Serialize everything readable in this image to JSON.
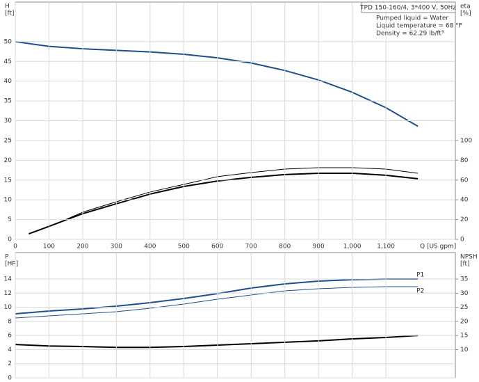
{
  "chart_data": [
    {
      "type": "line",
      "legend_box": [
        "TPD 150-160/4, 3*400 V, 50Hz",
        "Pumped liquid = Water",
        "Liquid temperature = 68 °F",
        "Density = 62.29 lb/ft³"
      ],
      "ylabel": [
        "H",
        "[ft]"
      ],
      "y2label": [
        "eta",
        "[%]"
      ],
      "xlabel": "Q [US gpm]",
      "xlim": [
        0,
        1300
      ],
      "xticks": [
        0,
        100,
        200,
        300,
        400,
        500,
        600,
        700,
        800,
        900,
        {
          "value": 1000,
          "label": "1,000"
        },
        {
          "value": 1100,
          "label": "1,100"
        }
      ],
      "ylim": [
        0,
        60
      ],
      "yticks": [
        0,
        5,
        10,
        15,
        20,
        25,
        30,
        35,
        40,
        45,
        50
      ],
      "y2lim": [
        0,
        240
      ],
      "y2ticks": [
        0,
        20,
        40,
        60,
        80,
        100
      ],
      "grid": true,
      "series": [
        {
          "color": "#1f4e8c",
          "width": 2,
          "x": [
            0,
            100,
            200,
            300,
            400,
            500,
            600,
            700,
            800,
            900,
            1000,
            1100,
            1195
          ],
          "values": [
            50,
            48.8,
            48.2,
            47.8,
            47.4,
            46.8,
            45.9,
            44.6,
            42.7,
            40.3,
            37.2,
            33.3,
            28.6
          ]
        },
        {
          "color": "#000000",
          "width": 1,
          "axis": "y2",
          "x": [
            40,
            100,
            200,
            300,
            400,
            500,
            600,
            700,
            800,
            900,
            1000,
            1100,
            1195
          ],
          "values": [
            5.6,
            12.7,
            27.5,
            38,
            47.9,
            55.6,
            63.4,
            67.6,
            71.1,
            72.5,
            72.5,
            71.1,
            66.9
          ]
        },
        {
          "color": "#000000",
          "width": 2,
          "axis": "y2",
          "x": [
            40,
            80,
            200,
            300,
            400,
            500,
            600,
            700,
            800,
            900,
            1000,
            1100,
            1195
          ],
          "values": [
            5.6,
            10.6,
            26,
            36,
            45.8,
            53.5,
            59,
            62.7,
            65.5,
            66.9,
            66.9,
            64.8,
            61.3
          ]
        }
      ]
    },
    {
      "type": "line",
      "ylabel": [
        "P",
        "[HP]"
      ],
      "y2label": [
        "NPSH",
        "[ft]"
      ],
      "xlim": [
        0,
        1300
      ],
      "ylim": [
        0,
        17.75
      ],
      "yticks": [
        0,
        2,
        4,
        6,
        8,
        10,
        12,
        14
      ],
      "y2lim": [
        0,
        44.4
      ],
      "y2ticks": [
        10,
        15,
        20,
        25,
        30,
        35
      ],
      "grid": true,
      "series": [
        {
          "name": "P1",
          "color": "#1f4e8c",
          "width": 2,
          "x": [
            0,
            100,
            200,
            300,
            400,
            500,
            600,
            700,
            800,
            900,
            1000,
            1100,
            1195
          ],
          "values": [
            9.07,
            9.47,
            9.76,
            10.16,
            10.65,
            11.24,
            11.93,
            12.72,
            13.31,
            13.71,
            13.9,
            14.0,
            14.0
          ]
        },
        {
          "name": "P2",
          "color": "#1f4e8c",
          "width": 1,
          "x": [
            0,
            100,
            200,
            300,
            400,
            500,
            600,
            700,
            800,
            900,
            1000,
            1100,
            1195
          ],
          "values": [
            8.48,
            8.78,
            9.07,
            9.37,
            9.86,
            10.45,
            11.14,
            11.74,
            12.33,
            12.62,
            12.82,
            12.92,
            12.92
          ]
        },
        {
          "color": "#000000",
          "width": 2,
          "axis": "y2",
          "x": [
            0,
            100,
            200,
            300,
            400,
            500,
            600,
            700,
            800,
            900,
            1000,
            1100,
            1195
          ],
          "values": [
            11.8,
            11.3,
            11.1,
            10.8,
            10.8,
            11.1,
            11.6,
            12.1,
            12.6,
            13.1,
            13.8,
            14.3,
            15.0
          ]
        }
      ]
    }
  ]
}
